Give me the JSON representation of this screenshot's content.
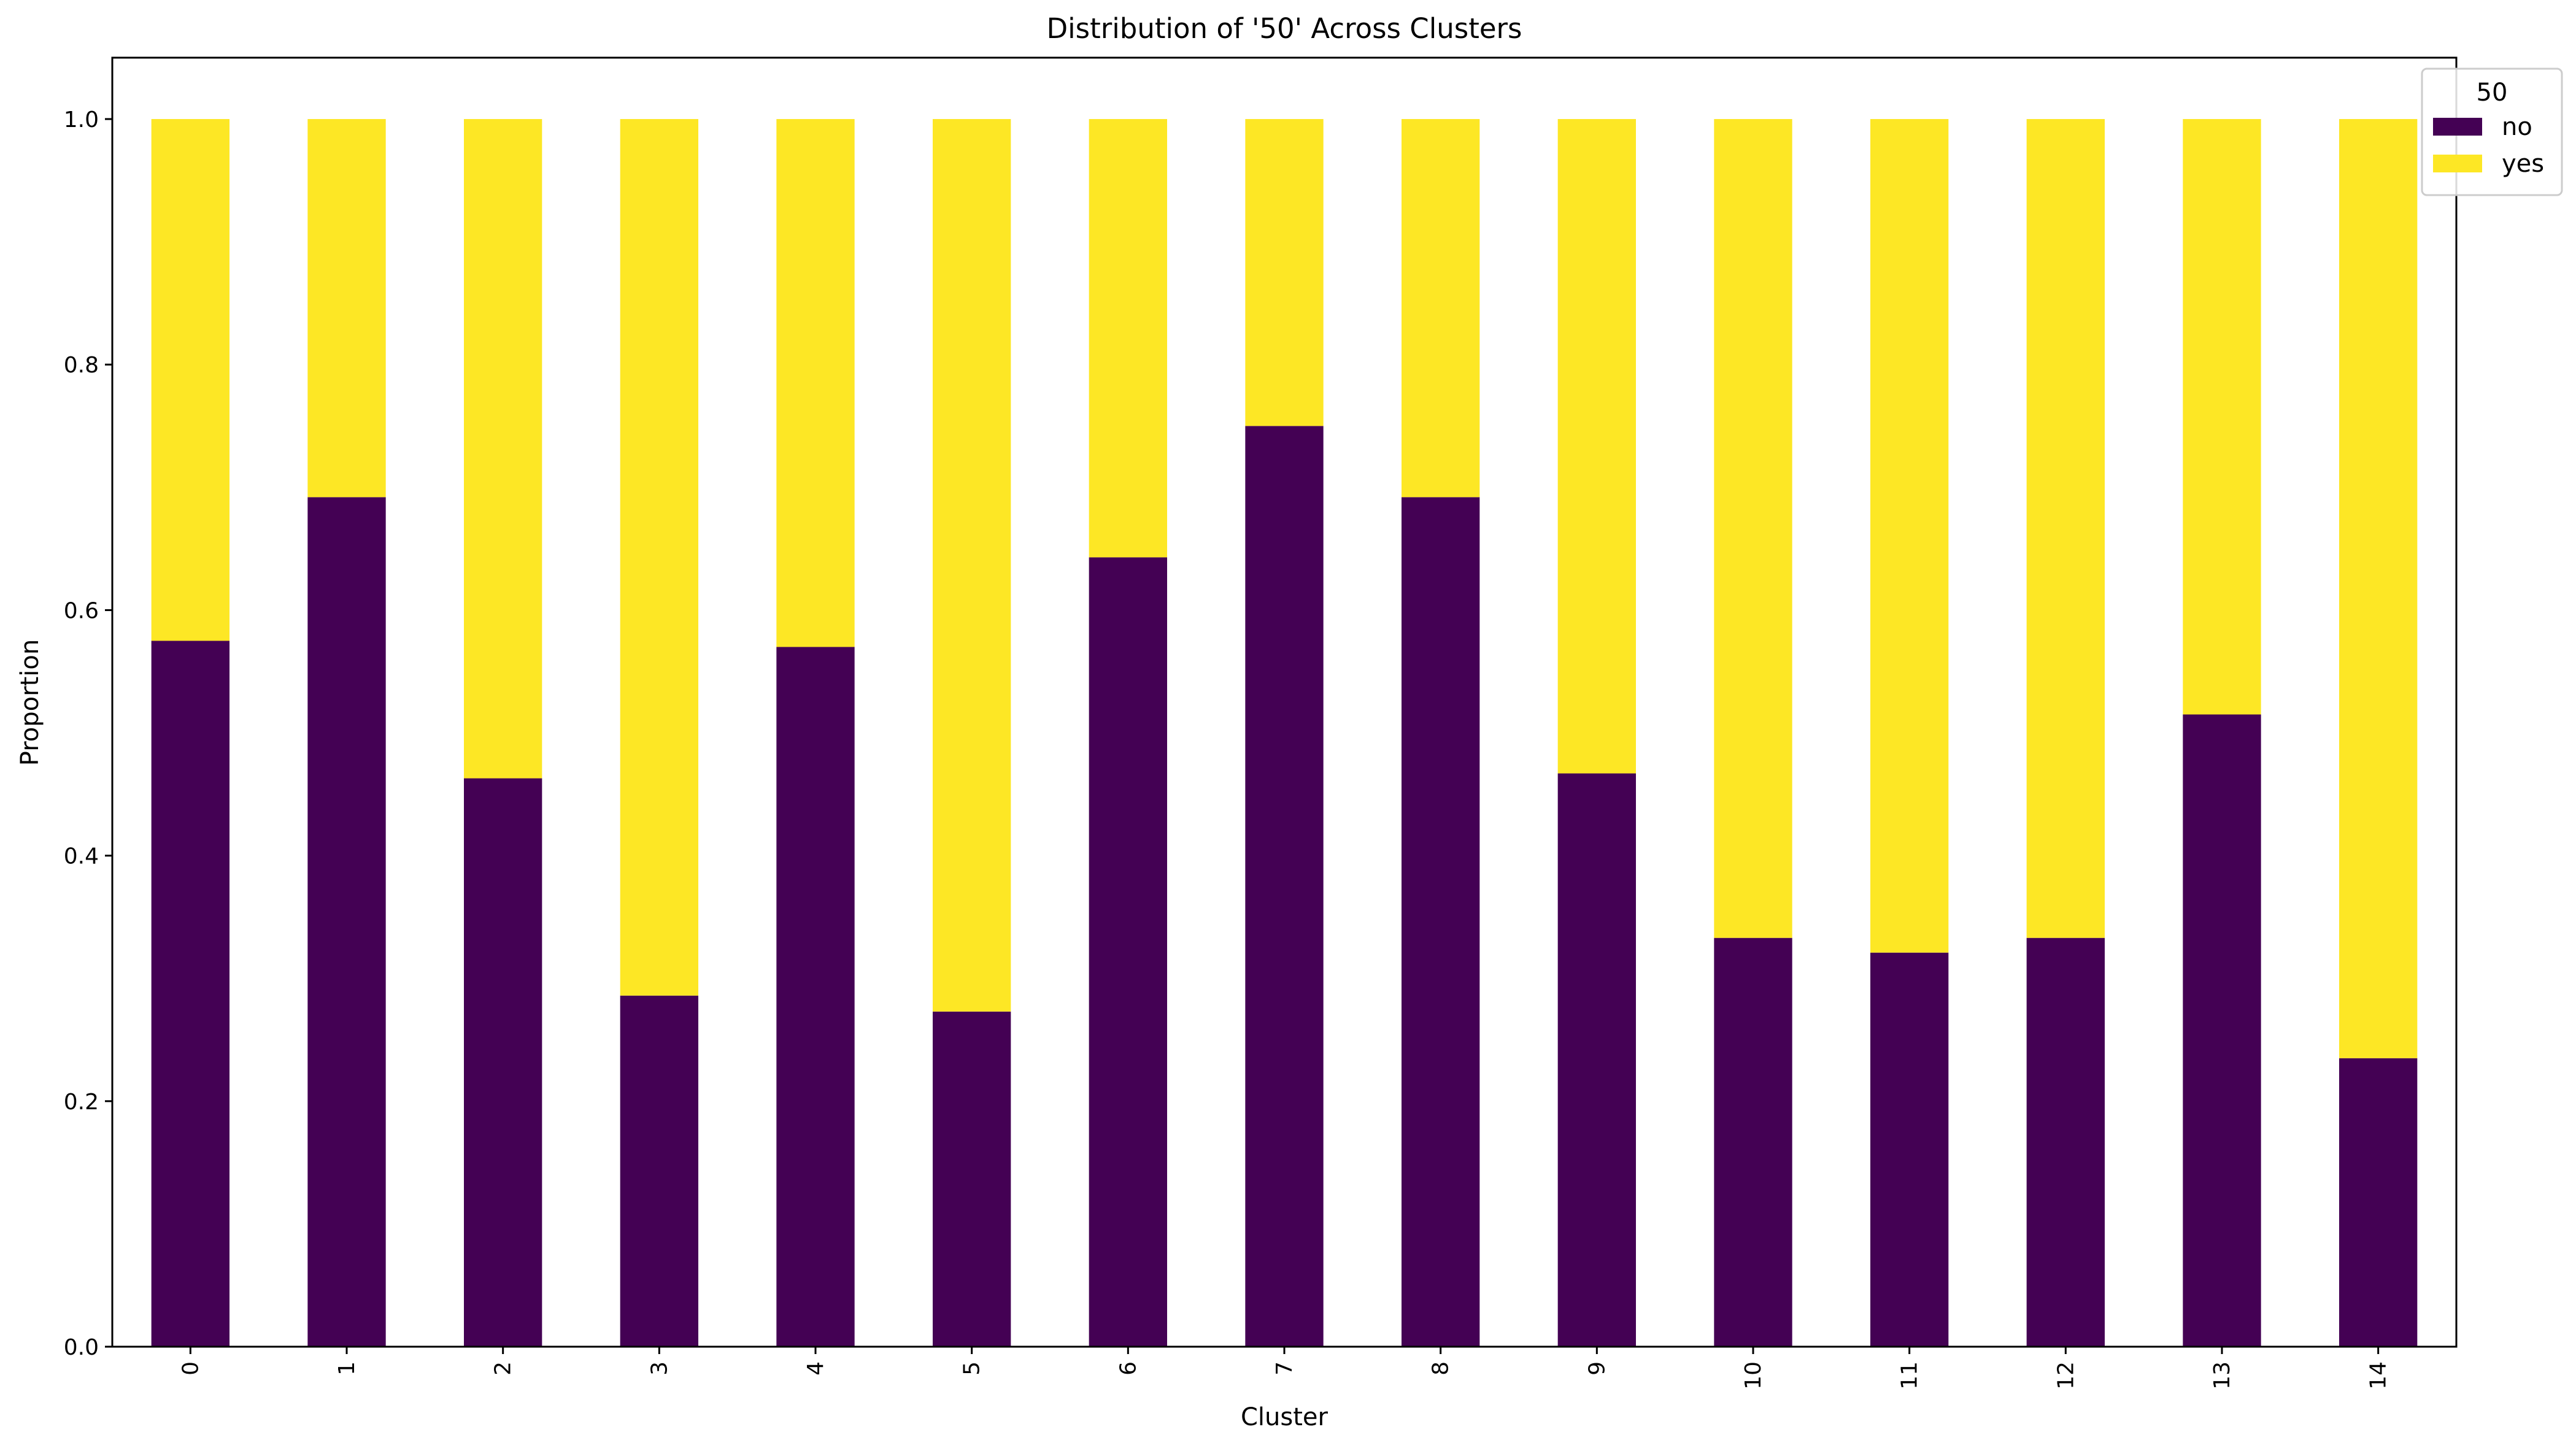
{
  "chart_data": {
    "type": "bar",
    "stacked": true,
    "title": "Distribution of '50' Across Clusters",
    "xlabel": "Cluster",
    "ylabel": "Proportion",
    "ylim": [
      0,
      1.05
    ],
    "yticks": [
      "0.0",
      "0.2",
      "0.4",
      "0.6",
      "0.8",
      "1.0"
    ],
    "grid": false,
    "categories": [
      "0",
      "1",
      "2",
      "3",
      "4",
      "5",
      "6",
      "7",
      "8",
      "9",
      "10",
      "11",
      "12",
      "13",
      "14"
    ],
    "series": [
      {
        "name": "no",
        "color": "#440154",
        "values": [
          0.575,
          0.692,
          0.463,
          0.286,
          0.57,
          0.273,
          0.643,
          0.75,
          0.692,
          0.467,
          0.333,
          0.321,
          0.333,
          0.515,
          0.235
        ]
      },
      {
        "name": "yes",
        "color": "#fde725",
        "values": [
          0.425,
          0.308,
          0.537,
          0.714,
          0.43,
          0.727,
          0.357,
          0.25,
          0.308,
          0.533,
          0.667,
          0.679,
          0.667,
          0.485,
          0.765
        ]
      }
    ],
    "legend": {
      "title": "50",
      "placement": "top-right"
    }
  }
}
